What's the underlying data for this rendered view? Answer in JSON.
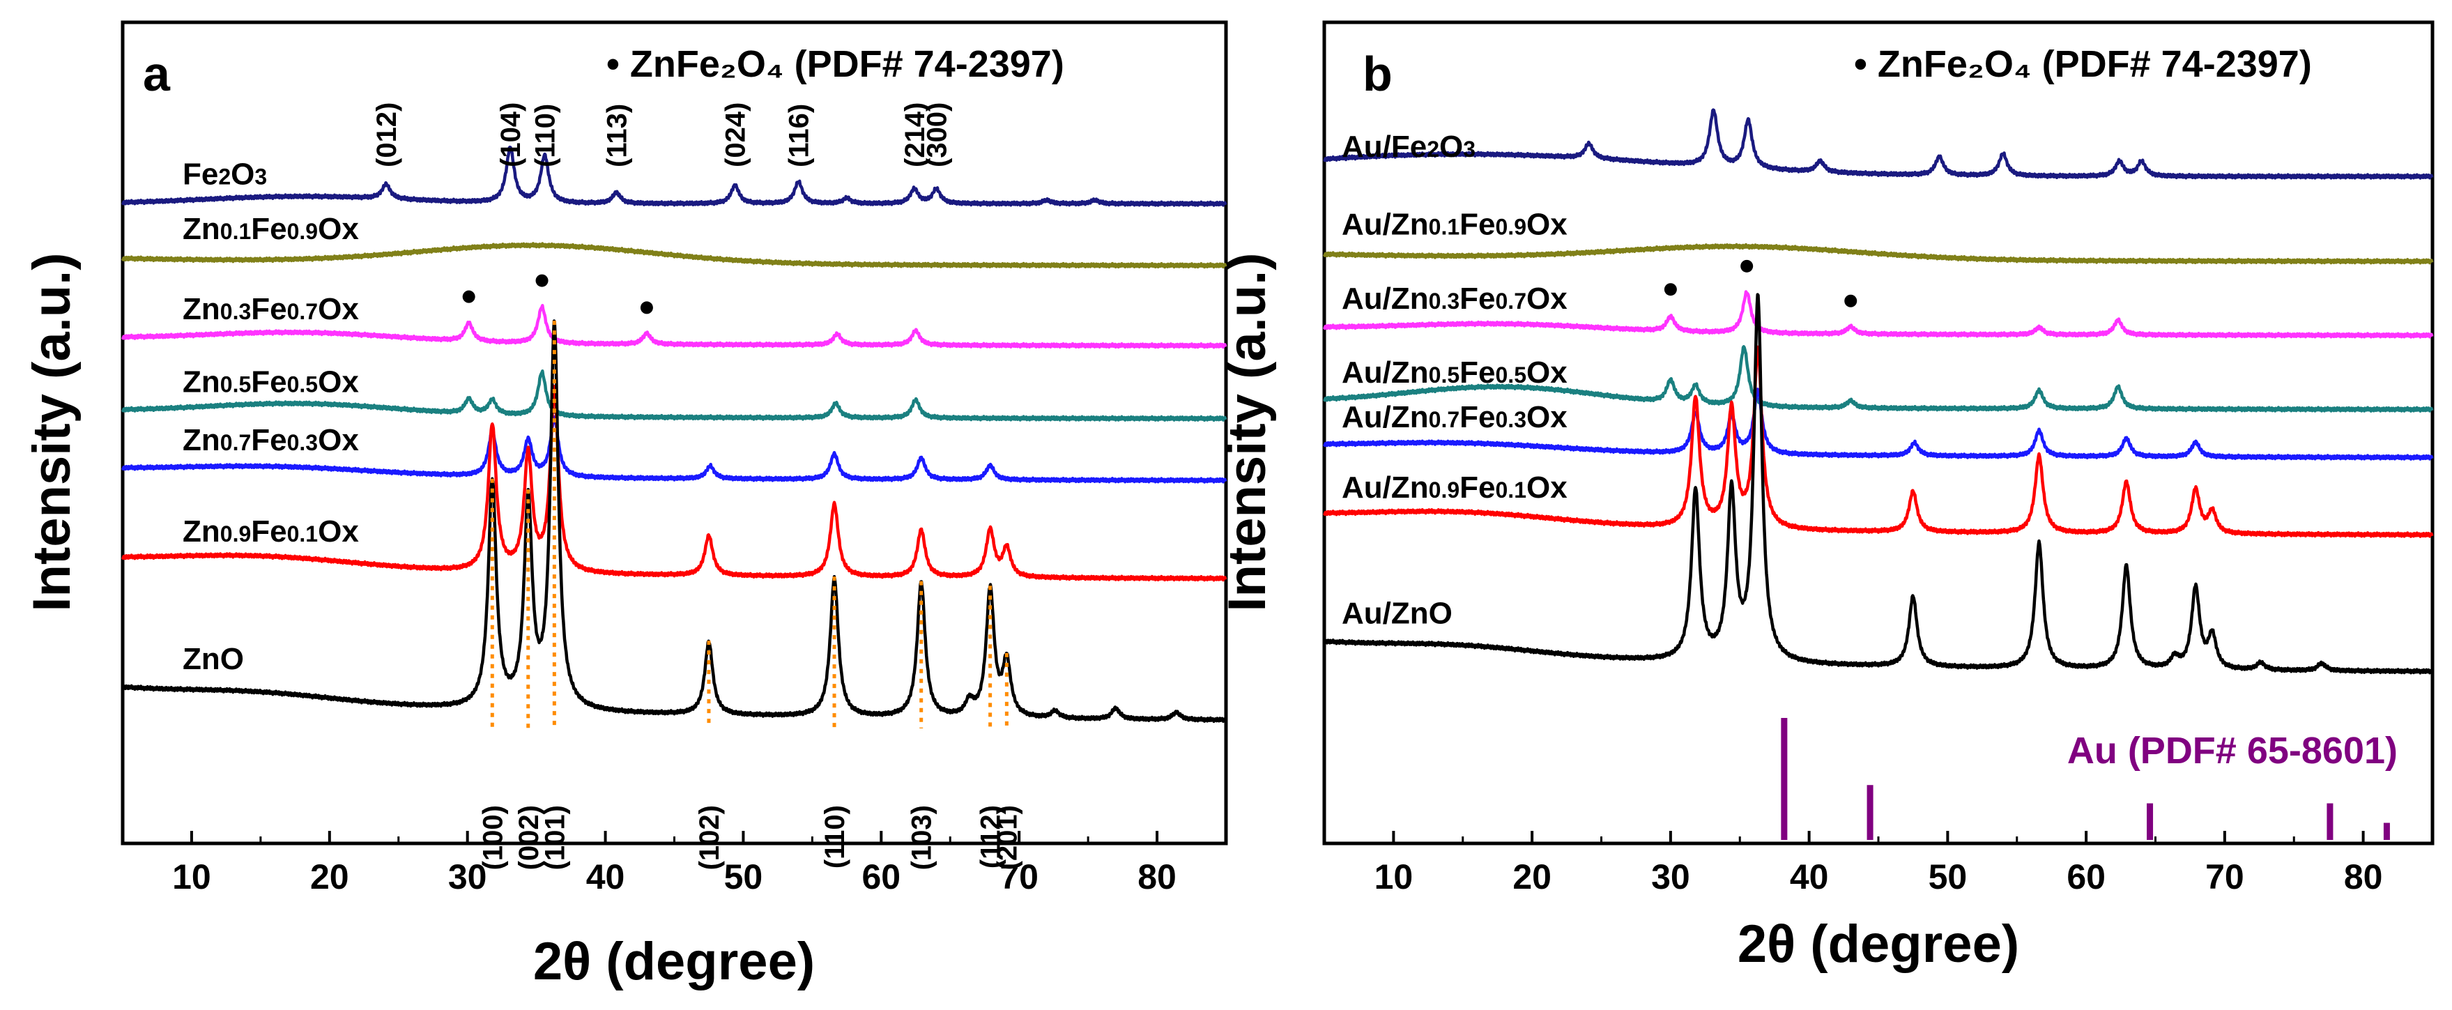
{
  "chart_data": [
    {
      "type": "line",
      "panel_label": "a",
      "legend": "• ZnFe₂O₄ (PDF# 74-2397)",
      "xlabel": "2θ (degree)",
      "ylabel": "Intensity (a.u.)",
      "xlim": [
        5,
        85
      ],
      "xticks": [
        10,
        20,
        30,
        40,
        50,
        60,
        70,
        80
      ],
      "tick_labels": [
        "10",
        "20",
        "30",
        "40",
        "50",
        "60",
        "70",
        "80"
      ],
      "zno_reflection_labels": [
        {
          "label": "(100)",
          "x": 31.8
        },
        {
          "label": "(002)",
          "x": 34.4
        },
        {
          "label": "(101)",
          "x": 36.3
        },
        {
          "label": "(102)",
          "x": 47.5
        },
        {
          "label": "(110)",
          "x": 56.6
        },
        {
          "label": "(103)",
          "x": 62.9
        },
        {
          "label": "(112)",
          "x": 67.9
        },
        {
          "label": "(201)",
          "x": 69.1
        }
      ],
      "fe2o3_reflection_labels": [
        {
          "label": "(012)",
          "x": 24.1
        },
        {
          "label": "(104)",
          "x": 33.1
        },
        {
          "label": "(110)",
          "x": 35.6
        },
        {
          "label": "(113)",
          "x": 40.8
        },
        {
          "label": "(024)",
          "x": 49.4
        },
        {
          "label": "(116)",
          "x": 54.0
        },
        {
          "label": "(214)",
          "x": 62.4
        },
        {
          "label": "(300)",
          "x": 64.0
        }
      ],
      "spinel_markers_x": [
        30.1,
        35.4,
        43.0
      ],
      "series": [
        {
          "name": "Fe2O3",
          "label_main": "Fe",
          "label_parts": [
            "2",
            "O",
            "3"
          ],
          "color": "#1a1a80",
          "offset": 14.2,
          "baseline": 0.0,
          "peaks": [
            [
              24.1,
              0.4
            ],
            [
              33.1,
              1.5
            ],
            [
              35.6,
              1.3
            ],
            [
              40.8,
              0.3
            ],
            [
              49.4,
              0.5
            ],
            [
              54.0,
              0.6
            ],
            [
              57.5,
              0.15
            ],
            [
              62.4,
              0.4
            ],
            [
              64.0,
              0.4
            ],
            [
              72.0,
              0.1
            ],
            [
              75.5,
              0.1
            ]
          ],
          "hump": [
            [
              18,
              0.2,
              10
            ]
          ]
        },
        {
          "name": "Zn0.1Fe0.9Ox",
          "color": "#808018",
          "offset": 12.5,
          "baseline": 0.2,
          "peaks": [],
          "hump": [
            [
              35,
              0.5,
              12
            ]
          ]
        },
        {
          "name": "Zn0.3Fe0.7Ox",
          "color": "#ff33ff",
          "offset": 10.3,
          "baseline": 0.2,
          "peaks": [
            [
              30.1,
              0.5
            ],
            [
              35.4,
              1.0
            ],
            [
              43.0,
              0.3
            ],
            [
              56.8,
              0.3
            ],
            [
              62.5,
              0.4
            ]
          ],
          "hump": [
            [
              18,
              0.25,
              10
            ]
          ]
        },
        {
          "name": "Zn0.5Fe0.5Ox",
          "color": "#1a8080",
          "offset": 8.3,
          "baseline": 0.2,
          "peaks": [
            [
              30.1,
              0.4
            ],
            [
              31.8,
              0.4
            ],
            [
              35.4,
              1.2
            ],
            [
              56.7,
              0.4
            ],
            [
              62.5,
              0.5
            ]
          ],
          "hump": [
            [
              18,
              0.3,
              10
            ]
          ]
        },
        {
          "name": "Zn0.7Fe0.3Ox",
          "color": "#1a1aff",
          "offset": 6.6,
          "baseline": 0.3,
          "peaks": [
            [
              31.8,
              1.2
            ],
            [
              34.4,
              1.0
            ],
            [
              36.3,
              1.6
            ],
            [
              47.6,
              0.35
            ],
            [
              56.6,
              0.7
            ],
            [
              62.9,
              0.6
            ],
            [
              67.9,
              0.4
            ]
          ],
          "hump": [
            [
              16,
              0.2,
              10
            ]
          ]
        },
        {
          "name": "Zn0.9Fe0.1Ox",
          "color": "#ff0000",
          "offset": 3.9,
          "baseline": 0.5,
          "peaks": [
            [
              31.8,
              4.0
            ],
            [
              34.4,
              3.2
            ],
            [
              36.3,
              5.0
            ],
            [
              47.5,
              1.1
            ],
            [
              56.6,
              2.0
            ],
            [
              62.9,
              1.3
            ],
            [
              67.9,
              1.3
            ],
            [
              69.1,
              0.8
            ]
          ],
          "hump": [
            [
              15,
              0.3,
              10
            ]
          ]
        },
        {
          "name": "ZnO",
          "color": "#000000",
          "offset": 0.0,
          "baseline": 0.9,
          "peaks": [
            [
              31.8,
              6.2
            ],
            [
              34.4,
              5.6
            ],
            [
              36.3,
              10.5
            ],
            [
              47.5,
              2.0
            ],
            [
              56.6,
              3.8
            ],
            [
              62.9,
              3.7
            ],
            [
              66.4,
              0.4
            ],
            [
              67.9,
              3.5
            ],
            [
              69.1,
              1.5
            ],
            [
              72.6,
              0.2
            ],
            [
              77.0,
              0.3
            ],
            [
              81.4,
              0.2
            ]
          ],
          "hump": [
            [
              15,
              0.2,
              8
            ]
          ]
        }
      ]
    },
    {
      "type": "line",
      "panel_label": "b",
      "legend": "• ZnFe₂O₄ (PDF# 74-2397)",
      "xlabel": "2θ (degree)",
      "ylabel": "Intensity (a.u.)",
      "xlim": [
        5,
        85
      ],
      "xticks": [
        10,
        20,
        30,
        40,
        50,
        60,
        70,
        80
      ],
      "tick_labels": [
        "10",
        "20",
        "30",
        "40",
        "50",
        "60",
        "70",
        "80"
      ],
      "spinel_markers_x": [
        30.0,
        35.5,
        43.0
      ],
      "reference": {
        "label": "Au (PDF# 65-8601)",
        "color": "#800080",
        "lines": [
          [
            38.2,
            1.0
          ],
          [
            44.4,
            0.45
          ],
          [
            64.6,
            0.3
          ],
          [
            77.6,
            0.3
          ],
          [
            81.7,
            0.14
          ]
        ]
      },
      "series": [
        {
          "name": "Au/Fe2O3",
          "color": "#1a1a80",
          "offset": 13.4,
          "baseline": 0.0,
          "peaks": [
            [
              24.1,
              0.4
            ],
            [
              33.1,
              1.5
            ],
            [
              35.6,
              1.3
            ],
            [
              40.8,
              0.3
            ],
            [
              49.4,
              0.5
            ],
            [
              54.0,
              0.6
            ],
            [
              62.4,
              0.4
            ],
            [
              64.0,
              0.4
            ]
          ],
          "hump": [
            [
              15,
              0.6,
              20
            ]
          ]
        },
        {
          "name": "Au/Zn0.1Fe0.9Ox",
          "color": "#808018",
          "offset": 11.1,
          "baseline": 0.2,
          "peaks": [],
          "hump": [
            [
              35,
              0.35,
              12
            ]
          ]
        },
        {
          "name": "Au/Zn0.3Fe0.7Ox",
          "color": "#ff33ff",
          "offset": 9.1,
          "baseline": 0.2,
          "peaks": [
            [
              30.0,
              0.4
            ],
            [
              35.5,
              1.1
            ],
            [
              43.0,
              0.2
            ],
            [
              56.6,
              0.2
            ],
            [
              62.3,
              0.4
            ]
          ],
          "hump": [
            [
              18,
              0.2,
              10
            ]
          ]
        },
        {
          "name": "Au/Zn0.5Fe0.5Ox",
          "color": "#1a8080",
          "offset": 7.1,
          "baseline": 0.2,
          "peaks": [
            [
              30.0,
              0.6
            ],
            [
              31.8,
              0.5
            ],
            [
              35.3,
              1.6
            ],
            [
              43.0,
              0.2
            ],
            [
              56.6,
              0.5
            ],
            [
              62.3,
              0.6
            ]
          ],
          "hump": [
            [
              18,
              0.5,
              10
            ]
          ]
        },
        {
          "name": "Au/Zn0.7Fe0.3Ox",
          "color": "#1a1aff",
          "offset": 5.8,
          "baseline": 0.3,
          "peaks": [
            [
              31.8,
              1.1
            ],
            [
              34.4,
              1.0
            ],
            [
              36.3,
              1.7
            ],
            [
              47.6,
              0.35
            ],
            [
              56.6,
              0.7
            ],
            [
              62.9,
              0.5
            ],
            [
              67.9,
              0.4
            ]
          ],
          "hump": [
            [
              15,
              0.2,
              10
            ]
          ]
        },
        {
          "name": "Au/Zn0.9Fe0.1Ox",
          "color": "#ff0000",
          "offset": 3.7,
          "baseline": 0.5,
          "peaks": [
            [
              31.8,
              3.5
            ],
            [
              34.4,
              3.2
            ],
            [
              36.3,
              4.8
            ],
            [
              47.5,
              1.1
            ],
            [
              56.6,
              2.1
            ],
            [
              62.9,
              1.4
            ],
            [
              67.9,
              1.2
            ],
            [
              69.1,
              0.6
            ]
          ],
          "hump": [
            [
              15,
              0.3,
              10
            ]
          ]
        },
        {
          "name": "Au/ZnO",
          "color": "#000000",
          "offset": 0.0,
          "baseline": 0.8,
          "peaks": [
            [
              31.8,
              4.6
            ],
            [
              34.4,
              4.5
            ],
            [
              36.3,
              9.8
            ],
            [
              47.5,
              1.9
            ],
            [
              56.6,
              3.4
            ],
            [
              62.9,
              2.8
            ],
            [
              66.4,
              0.3
            ],
            [
              67.9,
              2.2
            ],
            [
              69.1,
              0.9
            ],
            [
              72.6,
              0.2
            ],
            [
              77.0,
              0.2
            ]
          ],
          "hump": [
            [
              15,
              0.2,
              8
            ]
          ]
        }
      ]
    }
  ]
}
